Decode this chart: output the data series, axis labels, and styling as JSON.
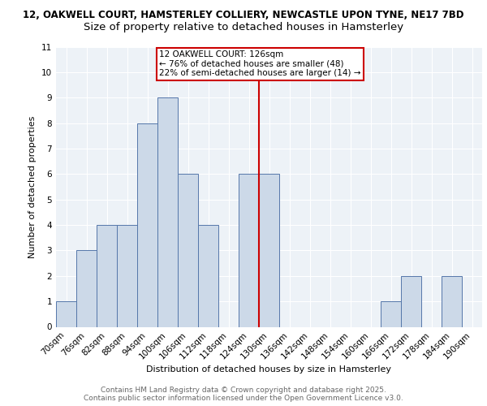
{
  "title1": "12, OAKWELL COURT, HAMSTERLEY COLLIERY, NEWCASTLE UPON TYNE, NE17 7BD",
  "title2": "Size of property relative to detached houses in Hamsterley",
  "xlabel": "Distribution of detached houses by size in Hamsterley",
  "ylabel": "Number of detached properties",
  "footer1": "Contains HM Land Registry data © Crown copyright and database right 2025.",
  "footer2": "Contains public sector information licensed under the Open Government Licence v3.0.",
  "bin_labels": [
    "70sqm",
    "76sqm",
    "82sqm",
    "88sqm",
    "94sqm",
    "100sqm",
    "106sqm",
    "112sqm",
    "118sqm",
    "124sqm",
    "130sqm",
    "136sqm",
    "142sqm",
    "148sqm",
    "154sqm",
    "160sqm",
    "166sqm",
    "172sqm",
    "178sqm",
    "184sqm",
    "190sqm"
  ],
  "bar_values": [
    1,
    3,
    4,
    4,
    8,
    9,
    6,
    4,
    0,
    6,
    6,
    0,
    0,
    0,
    0,
    0,
    1,
    2,
    0,
    2,
    0
  ],
  "bar_color": "#ccd9e8",
  "bar_edge_color": "#5577aa",
  "property_size": 126,
  "property_label": "12 OAKWELL COURT: 126sqm",
  "annotation_line1": "← 76% of detached houses are smaller (48)",
  "annotation_line2": "22% of semi-detached houses are larger (14) →",
  "vline_color": "#cc0000",
  "annotation_box_edge": "#cc0000",
  "ylim": [
    0,
    11
  ],
  "yticks": [
    0,
    1,
    2,
    3,
    4,
    5,
    6,
    7,
    8,
    9,
    10,
    11
  ],
  "bg_color": "#edf2f7",
  "grid_color": "#ffffff",
  "title1_fontsize": 8.5,
  "title2_fontsize": 9.5,
  "axis_label_fontsize": 8,
  "tick_fontsize": 7.5,
  "footer_fontsize": 6.5,
  "annot_fontsize": 7.5
}
